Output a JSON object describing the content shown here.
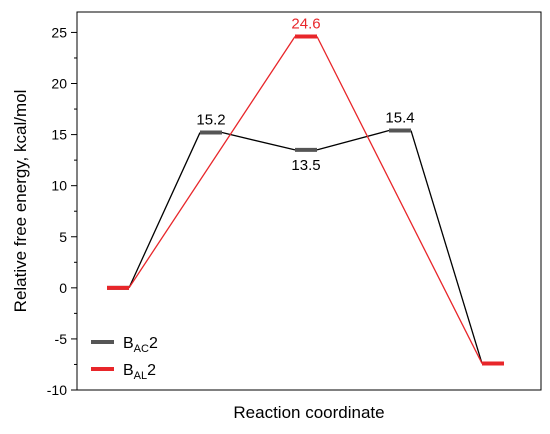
{
  "chart_data": {
    "type": "line",
    "xlabel": "Reaction coordinate",
    "ylabel": "Relative free energy, kcal/mol",
    "ylim": [
      -10,
      27
    ],
    "yticks": [
      -10,
      -5,
      0,
      5,
      10,
      15,
      20,
      25
    ],
    "grid": false,
    "legend_position": "bottom-left",
    "series": [
      {
        "name": "BAC2",
        "name_base": "B",
        "name_sub": "AC",
        "name_suffix": "2",
        "color": "#555555",
        "line_color": "#000000",
        "x": [
          0,
          1,
          2,
          3,
          4
        ],
        "y": [
          0,
          15.2,
          13.5,
          15.4,
          -7.4
        ],
        "labels": [
          "",
          "15.2",
          "13.5",
          "15.4",
          ""
        ],
        "label_side": [
          "",
          "above",
          "below",
          "above",
          ""
        ]
      },
      {
        "name": "BAL2",
        "name_base": "B",
        "name_sub": "AL",
        "name_suffix": "2",
        "color": "#e8262a",
        "line_color": "#e8262a",
        "x": [
          0,
          2,
          4
        ],
        "y": [
          0,
          24.6,
          -7.4
        ],
        "labels": [
          "",
          "24.6",
          ""
        ],
        "label_side": [
          "",
          "above",
          ""
        ]
      }
    ]
  }
}
